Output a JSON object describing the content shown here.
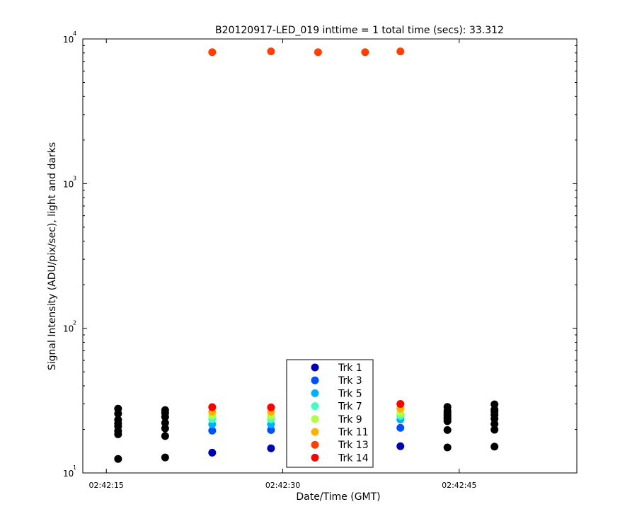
{
  "chart_data": {
    "type": "scatter",
    "title": "B20120917-LED_019 inttime = 1 total time (secs): 33.312",
    "xlabel": "Date/Time (GMT)",
    "ylabel": "Signal Intensity (ADU/pix/sec), light and darks",
    "yscale": "log",
    "ylim": [
      10,
      10000
    ],
    "xlim": [
      "02:42:13",
      "02:42:55"
    ],
    "x_ticks": [
      "02:42:15",
      "02:42:30",
      "02:42:45"
    ],
    "y_ticks": [
      {
        "base": "10",
        "exp": "1"
      },
      {
        "base": "10",
        "exp": "2"
      },
      {
        "base": "10",
        "exp": "3"
      },
      {
        "base": "10",
        "exp": "4"
      }
    ],
    "legend_position": "bottom-center",
    "series": [
      {
        "name": "Trk 1",
        "color": "#0000b0",
        "points": [
          [
            "02:42:24",
            13.8
          ],
          [
            "02:42:29",
            14.8
          ],
          [
            "02:42:40",
            15.3
          ]
        ]
      },
      {
        "name": "Trk 3",
        "color": "#0050ff",
        "points": [
          [
            "02:42:24",
            19.6
          ],
          [
            "02:42:29",
            19.8
          ],
          [
            "02:42:40",
            20.5
          ]
        ]
      },
      {
        "name": "Trk 5",
        "color": "#00b0ff",
        "points": [
          [
            "02:42:24",
            21.7
          ],
          [
            "02:42:29",
            21.7
          ],
          [
            "02:42:40",
            23.4
          ]
        ]
      },
      {
        "name": "Trk 7",
        "color": "#40ffc0",
        "points": [
          [
            "02:42:24",
            23.6
          ],
          [
            "02:42:29",
            23.5
          ],
          [
            "02:42:40",
            24.8
          ]
        ]
      },
      {
        "name": "Trk 9",
        "color": "#b0ff40",
        "points": [
          [
            "02:42:24",
            24.9
          ],
          [
            "02:42:29",
            24.7
          ],
          [
            "02:42:40",
            25.9
          ]
        ]
      },
      {
        "name": "Trk 11",
        "color": "#ffb000",
        "points": [
          [
            "02:42:24",
            26.5
          ],
          [
            "02:42:29",
            26.5
          ],
          [
            "02:42:40",
            27.9
          ]
        ]
      },
      {
        "name": "Trk 13",
        "color": "#ff4000",
        "points": [
          [
            "02:42:24",
            8100
          ],
          [
            "02:42:29",
            8200
          ],
          [
            "02:42:33",
            8100
          ],
          [
            "02:42:37",
            8100
          ],
          [
            "02:42:40",
            8200
          ]
        ]
      },
      {
        "name": "Trk 14",
        "color": "#ff0000",
        "points": [
          [
            "02:42:24",
            28.5
          ],
          [
            "02:42:29",
            28.4
          ],
          [
            "02:42:40",
            30.0
          ]
        ]
      },
      {
        "name": "",
        "color": "#000000",
        "points": [
          [
            "02:42:16",
            12.5
          ],
          [
            "02:42:16",
            18.5
          ],
          [
            "02:42:16",
            19.5
          ],
          [
            "02:42:16",
            21.0
          ],
          [
            "02:42:16",
            22.0
          ],
          [
            "02:42:16",
            23.3
          ],
          [
            "02:42:16",
            25.7
          ],
          [
            "02:42:16",
            27.8
          ],
          [
            "02:42:20",
            12.8
          ],
          [
            "02:42:20",
            18.0
          ],
          [
            "02:42:20",
            20.3
          ],
          [
            "02:42:20",
            22.2
          ],
          [
            "02:42:20",
            24.4
          ],
          [
            "02:42:20",
            26.0
          ],
          [
            "02:42:20",
            27.2
          ],
          [
            "02:42:44",
            15.0
          ],
          [
            "02:42:44",
            19.8
          ],
          [
            "02:42:44",
            22.8
          ],
          [
            "02:42:44",
            23.6
          ],
          [
            "02:42:44",
            24.3
          ],
          [
            "02:42:44",
            25.1
          ],
          [
            "02:42:44",
            26.0
          ],
          [
            "02:42:44",
            26.9
          ],
          [
            "02:42:44",
            28.6
          ],
          [
            "02:42:48",
            15.2
          ],
          [
            "02:42:48",
            19.9
          ],
          [
            "02:42:48",
            21.8
          ],
          [
            "02:42:48",
            23.7
          ],
          [
            "02:42:48",
            25.2
          ],
          [
            "02:42:48",
            26.6
          ],
          [
            "02:42:48",
            27.4
          ],
          [
            "02:42:48",
            29.8
          ]
        ]
      }
    ]
  }
}
